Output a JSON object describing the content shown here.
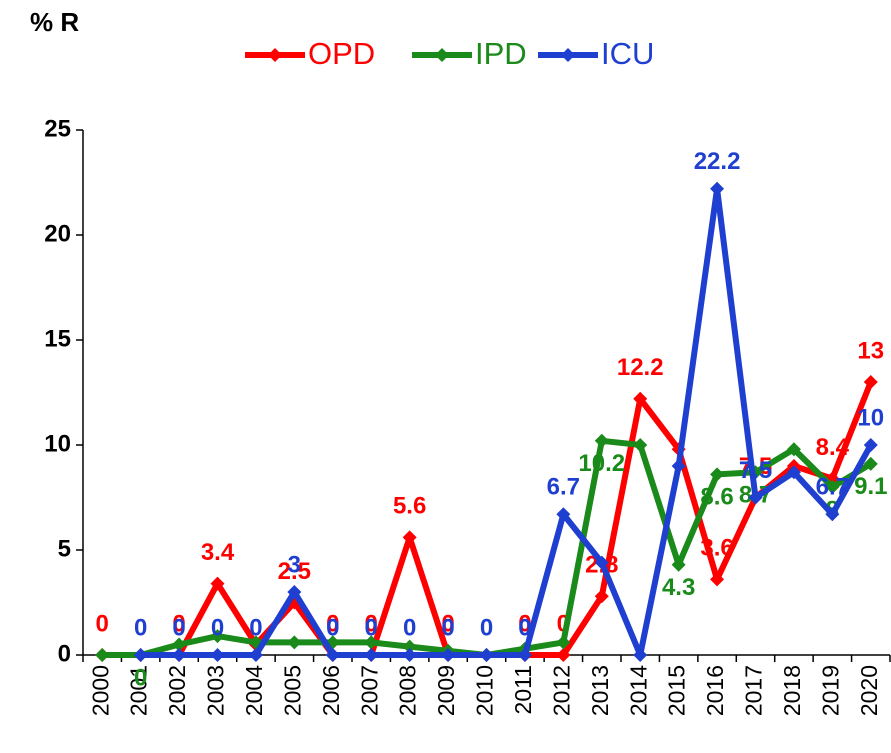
{
  "chart_data": {
    "type": "line",
    "y_label": "% R",
    "categories": [
      "2000",
      "2001",
      "2002",
      "2003",
      "2004",
      "2005",
      "2006",
      "2007",
      "2008",
      "2009",
      "2010",
      "2011",
      "2012",
      "2013",
      "2014",
      "2015",
      "2016",
      "2017",
      "2018",
      "2019",
      "2020"
    ],
    "series": [
      {
        "name": "OPD",
        "color": "#ff0000",
        "values": [
          0,
          0,
          0,
          3.4,
          0.5,
          2.5,
          0,
          0,
          5.6,
          0,
          0,
          0,
          0,
          2.8,
          12.2,
          9.8,
          3.6,
          7.5,
          9,
          8.4,
          13
        ],
        "value_labels": [
          "0",
          null,
          "0",
          "3.4",
          null,
          "2.5",
          "0",
          "0",
          "5.6",
          "0",
          null,
          "0",
          "0",
          "2.8",
          "12.2",
          null,
          "3.6",
          "7.5",
          null,
          "8.4",
          "13"
        ]
      },
      {
        "name": "IPD",
        "color": "#1a8a1a",
        "values": [
          0,
          0,
          0.5,
          0.9,
          0.6,
          0.6,
          0.6,
          0.6,
          0.4,
          0.2,
          0,
          0.3,
          0.6,
          10.2,
          10,
          4.3,
          8.6,
          8.7,
          9.8,
          8,
          9.1
        ],
        "value_labels": [
          null,
          "0",
          null,
          null,
          null,
          null,
          null,
          null,
          null,
          null,
          null,
          null,
          null,
          "10.2",
          null,
          "4.3",
          "8.6",
          "8.7",
          null,
          "8",
          "9.1"
        ]
      },
      {
        "name": "ICU",
        "color": "#1f3fd0",
        "values": [
          null,
          0,
          0,
          0,
          0,
          3,
          0,
          0,
          0,
          0,
          0,
          0,
          6.7,
          4.4,
          0,
          9,
          22.2,
          7.5,
          8.7,
          6.7,
          10
        ],
        "value_labels": [
          null,
          "0",
          "0",
          "0",
          "0",
          "3",
          "0",
          "0",
          "0",
          "0",
          "0",
          "0",
          "6.7",
          null,
          null,
          null,
          "22.2",
          "7.5",
          null,
          "6.7",
          "10"
        ]
      }
    ],
    "ylim": [
      0,
      25
    ],
    "yticks": [
      0,
      5,
      10,
      15,
      20,
      25
    ],
    "grid": false
  }
}
